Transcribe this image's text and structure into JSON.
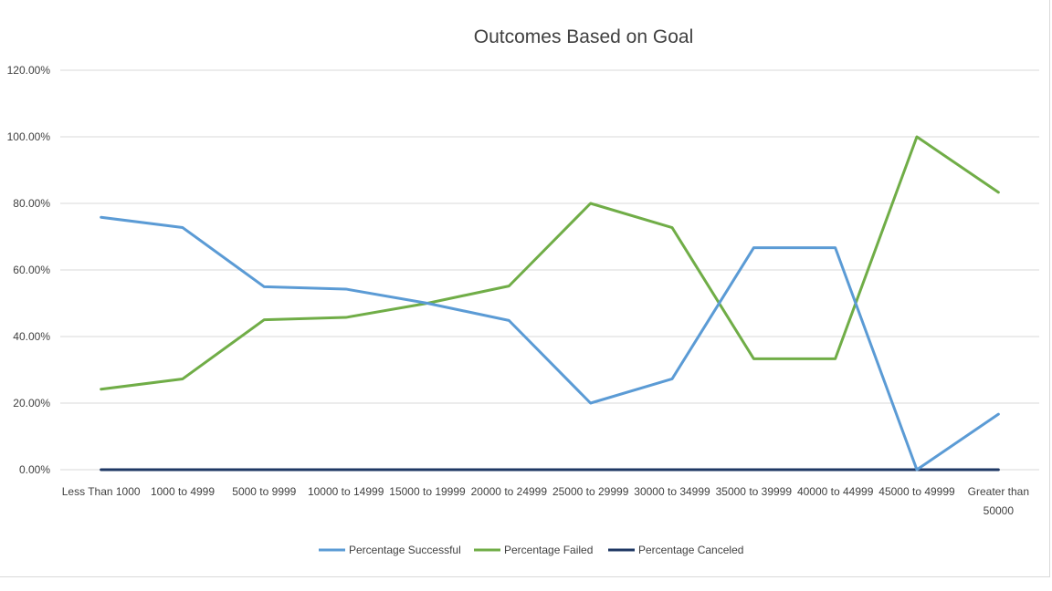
{
  "chart_data": {
    "type": "line",
    "title": "Outcomes Based on Goal",
    "xlabel": "",
    "ylabel": "",
    "categories": [
      "Less Than 1000",
      "1000 to 4999",
      "5000 to 9999",
      "10000 to 14999",
      "15000 to 19999",
      "20000 to 24999",
      "25000 to 29999",
      "30000 to 34999",
      "35000 to 39999",
      "40000 to 44999",
      "45000 to 49999",
      "Greater than 50000"
    ],
    "category_lines": [
      [
        "Less Than 1000"
      ],
      [
        "1000 to 4999"
      ],
      [
        "5000 to 9999"
      ],
      [
        "10000 to 14999"
      ],
      [
        "15000 to 19999"
      ],
      [
        "20000 to 24999"
      ],
      [
        "25000 to 29999"
      ],
      [
        "30000 to 34999"
      ],
      [
        "35000 to 39999"
      ],
      [
        "40000 to 44999"
      ],
      [
        "45000 to 49999"
      ],
      [
        "Greater than",
        "50000"
      ]
    ],
    "ylim": [
      0,
      1.2
    ],
    "y_ticks": [
      "0.00%",
      "20.00%",
      "40.00%",
      "60.00%",
      "80.00%",
      "100.00%",
      "120.00%"
    ],
    "grid": true,
    "legend_position": "bottom",
    "series": [
      {
        "name": "Percentage Successful",
        "color": "#5b9bd5",
        "values": [
          0.7582,
          0.7273,
          0.5495,
          0.5426,
          0.5,
          0.4483,
          0.2,
          0.2727,
          0.6667,
          0.6667,
          0.0,
          0.1667
        ]
      },
      {
        "name": "Percentage Failed",
        "color": "#70ad47",
        "values": [
          0.2418,
          0.2727,
          0.4505,
          0.4574,
          0.5,
          0.5517,
          0.8,
          0.7273,
          0.3333,
          0.3333,
          1.0,
          0.8333
        ]
      },
      {
        "name": "Percentage Canceled",
        "color": "#1f3864",
        "values": [
          0,
          0,
          0,
          0,
          0,
          0,
          0,
          0,
          0,
          0,
          0,
          0
        ]
      }
    ]
  }
}
